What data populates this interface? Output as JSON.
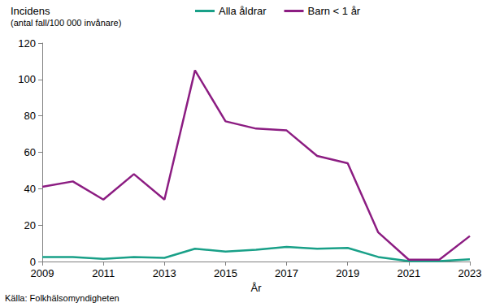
{
  "chart_data": {
    "type": "line",
    "y_label": "Incidens",
    "y_label_note": "(antal fall/100 000 invånare)",
    "x_label": "År",
    "source": "Källa: Folkhälsomyndigheten",
    "x": [
      2009,
      2010,
      2011,
      2012,
      2013,
      2014,
      2015,
      2016,
      2017,
      2018,
      2019,
      2020,
      2021,
      2022,
      2023
    ],
    "series": [
      {
        "name": "Alla åldrar",
        "color": "#19a088",
        "values": [
          2.5,
          2.5,
          1.5,
          2.5,
          2,
          7,
          5.5,
          6.5,
          8,
          7,
          7.5,
          2.5,
          0.2,
          0.2,
          1.2
        ]
      },
      {
        "name": "Barn < 1 år",
        "color": "#8c1d82",
        "values": [
          41,
          44,
          34,
          48,
          34,
          105,
          77,
          73,
          72,
          58,
          54,
          16,
          1,
          1,
          14
        ]
      }
    ],
    "xlim": [
      2009,
      2023
    ],
    "xticks": [
      2009,
      2011,
      2013,
      2015,
      2017,
      2019,
      2021,
      2023
    ],
    "ylim": [
      0,
      120
    ],
    "yticks": [
      0,
      20,
      40,
      60,
      80,
      100,
      120
    ],
    "grid": false,
    "legend": "top"
  }
}
